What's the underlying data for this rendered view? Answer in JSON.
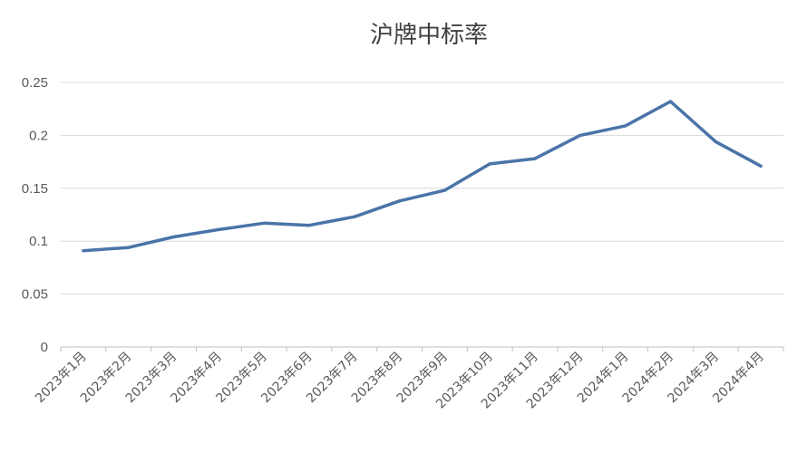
{
  "chart_data": {
    "type": "line",
    "title": "沪牌中标率",
    "xlabel": "",
    "ylabel": "",
    "categories": [
      "2023年1月",
      "2023年2月",
      "2023年3月",
      "2023年4月",
      "2023年5月",
      "2023年6月",
      "2023年7月",
      "2023年8月",
      "2023年9月",
      "2023年10月",
      "2023年11月",
      "2023年12月",
      "2024年1月",
      "2024年2月",
      "2024年3月",
      "2024年4月"
    ],
    "series": [
      {
        "values": [
          0.091,
          0.094,
          0.104,
          0.111,
          0.117,
          0.115,
          0.123,
          0.138,
          0.148,
          0.173,
          0.178,
          0.2,
          0.209,
          0.232,
          0.194,
          0.171
        ]
      }
    ],
    "ylim": [
      0,
      0.25
    ],
    "yticks": [
      "0",
      "0.05",
      "0.1",
      "0.15",
      "0.2",
      "0.25"
    ],
    "grid": true,
    "legend": "none",
    "colors": {
      "line": "#4a74a8",
      "grid": "#d9d9d9",
      "text": "#595959"
    }
  }
}
